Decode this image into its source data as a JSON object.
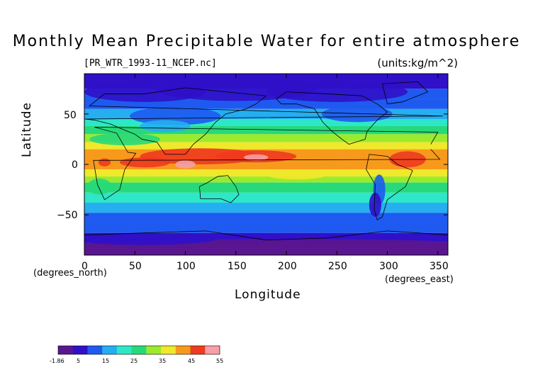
{
  "title": "Monthly Mean Precipitable Water for entire atmosphere",
  "file_label": "[PR_WTR_1993-11_NCEP.nc]",
  "units_label": "(units:kg/m^2)",
  "x_axis": {
    "label": "Longitude",
    "unit_note": "(degrees_east)",
    "ticks": [
      "0",
      "50",
      "100",
      "150",
      "200",
      "250",
      "300",
      "350"
    ]
  },
  "y_axis": {
    "label": "Latitude",
    "unit_note": "(degrees_north)",
    "ticks": [
      "50",
      "0",
      "−50"
    ]
  },
  "colorbar": {
    "labels": [
      "-1.86",
      "5",
      "15",
      "25",
      "35",
      "45",
      "55"
    ]
  },
  "colors": {
    "p5": "#5a1690",
    "p10": "#3010c8",
    "p15": "#1e5af0",
    "p20": "#25aef0",
    "p25": "#2ee6c8",
    "p30": "#27d97a",
    "p35": "#9cea2e",
    "p40": "#f0e82a",
    "p45": "#f79a1c",
    "p50": "#ee3a20",
    "p55": "#f5a0a6"
  },
  "chart_data": {
    "type": "heatmap",
    "variable": "Precipitable Water",
    "x_range_deg_east": [
      0,
      360
    ],
    "y_range_deg_north": [
      -90,
      90
    ],
    "x_ticks": [
      0,
      50,
      100,
      150,
      200,
      250,
      300,
      350
    ],
    "y_ticks": [
      -50,
      0,
      50
    ],
    "color_scale": {
      "min": -1.86,
      "max": 55,
      "labeled_levels": [
        5,
        15,
        25,
        35,
        45,
        55
      ]
    },
    "zonal_profile_kg_m2": [
      {
        "lat": 85,
        "value": 8
      },
      {
        "lat": 60,
        "value": 10
      },
      {
        "lat": 40,
        "value": 20
      },
      {
        "lat": 20,
        "value": 33
      },
      {
        "lat": 5,
        "value": 48
      },
      {
        "lat": -10,
        "value": 40
      },
      {
        "lat": -30,
        "value": 25
      },
      {
        "lat": -50,
        "value": 14
      },
      {
        "lat": -70,
        "value": 10
      },
      {
        "lat": -85,
        "value": 3
      }
    ],
    "grid": false
  }
}
